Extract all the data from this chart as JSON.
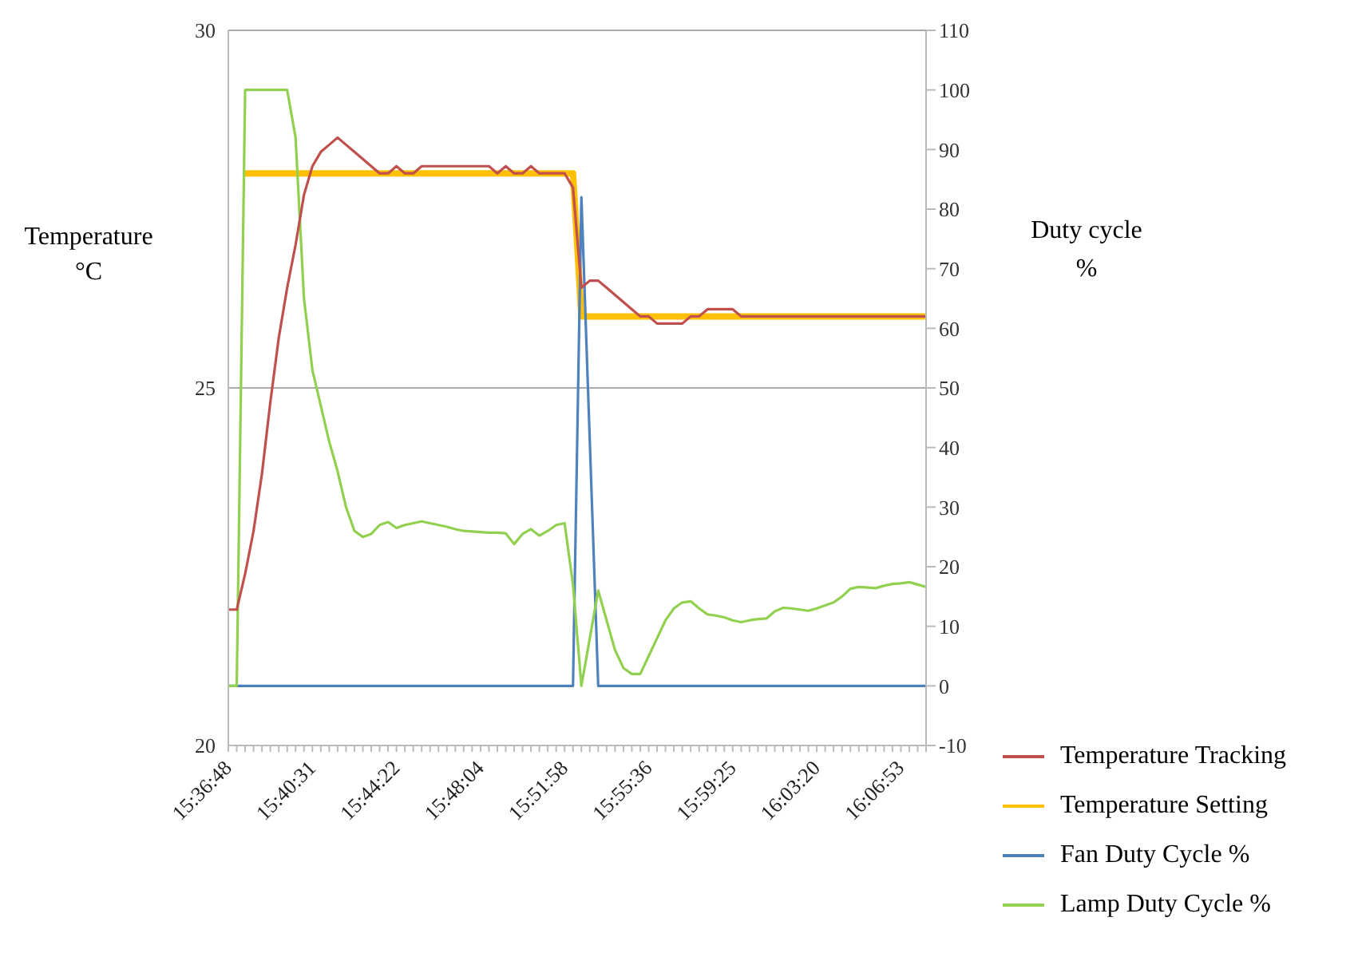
{
  "chart_data": {
    "type": "line",
    "ylabel": "Temperature °C",
    "y2label": "Duty cycle %",
    "categories": [
      "15:36:48",
      null,
      null,
      null,
      null,
      null,
      null,
      null,
      null,
      null,
      "15:40:31",
      null,
      null,
      null,
      null,
      null,
      null,
      null,
      null,
      null,
      "15:44:22",
      null,
      null,
      null,
      null,
      null,
      null,
      null,
      null,
      null,
      "15:48:04",
      null,
      null,
      null,
      null,
      null,
      null,
      null,
      null,
      null,
      "15:51:58",
      null,
      null,
      null,
      null,
      null,
      null,
      null,
      null,
      null,
      "15:55:36",
      null,
      null,
      null,
      null,
      null,
      null,
      null,
      null,
      null,
      "15:59:25",
      null,
      null,
      null,
      null,
      null,
      null,
      null,
      null,
      null,
      "16:03:20",
      null,
      null,
      null,
      null,
      null,
      null,
      null,
      null,
      null,
      "16:06:53",
      null,
      null,
      null
    ],
    "ylim": [
      20,
      30
    ],
    "yticks": [
      20,
      25,
      30
    ],
    "y2lim": [
      -10,
      110
    ],
    "y2ticks": [
      -10,
      0,
      10,
      20,
      30,
      40,
      50,
      60,
      70,
      80,
      90,
      100,
      110
    ],
    "grid": "y",
    "legend": "bottom right",
    "series": [
      {
        "name": "Temperature Tracking",
        "color": "#c0504d",
        "values": [
          21.9,
          21.9,
          22.4,
          23,
          23.8,
          24.8,
          25.7,
          26.4,
          27,
          27.7,
          28.1,
          28.3,
          28.4,
          28.5,
          28.4,
          28.3,
          28.2,
          28.1,
          28,
          28,
          28.1,
          28,
          28,
          28.1,
          28.1,
          28.1,
          28.1,
          28.1,
          28.1,
          28.1,
          28.1,
          28.1,
          28,
          28.1,
          28,
          28,
          28.1,
          28,
          28,
          28,
          28,
          27.8,
          26.4,
          26.5,
          26.5,
          26.4,
          26.3,
          26.2,
          26.1,
          26,
          26,
          25.9,
          25.9,
          25.9,
          25.9,
          26,
          26,
          26.1,
          26.1,
          26.1,
          26.1,
          26,
          26,
          26,
          26,
          26,
          26,
          26,
          26,
          26,
          26,
          26,
          26,
          26,
          26,
          26,
          26,
          26,
          26,
          26,
          26,
          26,
          26,
          26
        ]
      },
      {
        "name": "Temperature Setting",
        "color": "#ffc000",
        "values": [
          null,
          null,
          28,
          28,
          28,
          28,
          28,
          28,
          28,
          28,
          28,
          28,
          28,
          28,
          28,
          28,
          28,
          28,
          28,
          28,
          28,
          28,
          28,
          28,
          28,
          28,
          28,
          28,
          28,
          28,
          28,
          28,
          28,
          28,
          28,
          28,
          28,
          28,
          28,
          28,
          28,
          28,
          26,
          26,
          26,
          26,
          26,
          26,
          26,
          26,
          26,
          26,
          26,
          26,
          26,
          26,
          26,
          26,
          26,
          26,
          26,
          26,
          26,
          26,
          26,
          26,
          26,
          26,
          26,
          26,
          26,
          26,
          26,
          26,
          26,
          26,
          26,
          26,
          26,
          26,
          26,
          26,
          26,
          26
        ]
      },
      {
        "name": "Fan Duty Cycle %",
        "color": "#4f81bd",
        "axis": "y2",
        "values": [
          0,
          0,
          0,
          0,
          0,
          0,
          0,
          0,
          0,
          0,
          0,
          0,
          0,
          0,
          0,
          0,
          0,
          0,
          0,
          0,
          0,
          0,
          0,
          0,
          0,
          0,
          0,
          0,
          0,
          0,
          0,
          0,
          0,
          0,
          0,
          0,
          0,
          0,
          0,
          0,
          0,
          0,
          82,
          41,
          0,
          0,
          0,
          0,
          0,
          0,
          0,
          0,
          0,
          0,
          0,
          0,
          0,
          0,
          0,
          0,
          0,
          0,
          0,
          0,
          0,
          0,
          0,
          0,
          0,
          0,
          0,
          0,
          0,
          0,
          0,
          0,
          0,
          0,
          0,
          0,
          0,
          0,
          0,
          0
        ]
      },
      {
        "name": "Lamp Duty Cycle %",
        "color": "#92d050",
        "axis": "y2",
        "values": [
          0,
          0,
          100,
          100,
          100,
          100,
          100,
          100,
          92,
          65,
          53,
          47,
          41,
          36,
          30,
          26,
          25,
          25.5,
          27,
          27.5,
          26.5,
          27,
          27.3,
          27.6,
          27.3,
          27,
          26.7,
          26.3,
          26,
          25.9,
          25.8,
          25.7,
          25.7,
          25.6,
          23.8,
          25.5,
          26.3,
          25.2,
          26,
          27,
          27.3,
          17,
          0,
          8,
          16,
          11,
          6,
          3,
          2,
          2,
          5,
          8,
          11,
          13,
          14,
          14.2,
          13,
          12,
          11.8,
          11.5,
          11,
          10.7,
          11,
          11.2,
          11.3,
          12.5,
          13.1,
          13,
          12.8,
          12.6,
          13,
          13.5,
          14,
          15,
          16.3,
          16.6,
          16.5,
          16.4,
          16.8,
          17.1,
          17.2,
          17.4,
          17,
          16.6
        ]
      }
    ]
  }
}
